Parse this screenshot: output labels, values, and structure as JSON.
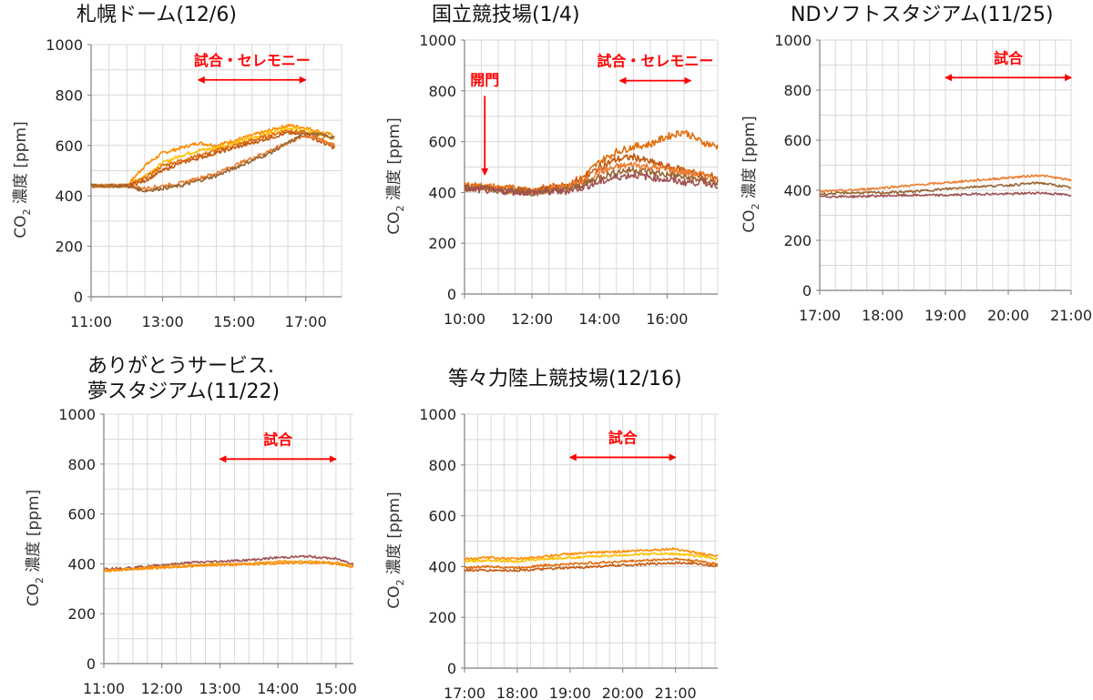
{
  "colors": {
    "grid": "#d9d9d9",
    "axis": "#7f7f7f",
    "annotation": "#ff0000",
    "series": [
      "#ff8c00",
      "#ffc000",
      "#e36c09",
      "#c55a11",
      "#ed7d31",
      "#996633",
      "#a05050",
      "#f4a020"
    ]
  },
  "chart_data": [
    {
      "type": "line",
      "title": "札幌ドーム(12/6)",
      "ylabel_main": "CO",
      "ylabel_sub": "2",
      "ylabel_rest": " 濃度 [ppm]",
      "ylim": [
        0,
        1000
      ],
      "yticks": [
        0,
        200,
        400,
        600,
        800,
        1000
      ],
      "xlim": [
        11,
        18
      ],
      "xticks": [
        11,
        13,
        15,
        17
      ],
      "xtick_labels": [
        "11:00",
        "13:00",
        "15:00",
        "17:00"
      ],
      "grid": true,
      "annotations": [
        {
          "text": "試合・セレモニー",
          "from": 14,
          "to": 17,
          "y": 860
        }
      ],
      "series": [
        {
          "x": [
            11,
            12,
            12.5,
            13,
            13.5,
            14,
            14.5,
            15,
            15.5,
            16,
            16.5,
            17,
            17.5,
            17.8
          ],
          "values": [
            440,
            440,
            520,
            570,
            590,
            610,
            600,
            620,
            640,
            660,
            680,
            670,
            650,
            640
          ]
        },
        {
          "x": [
            11,
            12,
            12.5,
            13,
            13.5,
            14,
            14.5,
            15,
            15.5,
            16,
            16.5,
            17,
            17.5,
            17.8
          ],
          "values": [
            440,
            440,
            480,
            530,
            560,
            580,
            590,
            610,
            630,
            650,
            670,
            660,
            640,
            620
          ]
        },
        {
          "x": [
            11,
            12,
            12.5,
            13,
            13.5,
            14,
            14.5,
            15,
            15.5,
            16,
            16.5,
            17,
            17.5,
            17.8
          ],
          "values": [
            440,
            440,
            470,
            520,
            540,
            560,
            580,
            600,
            620,
            640,
            660,
            650,
            620,
            600
          ]
        },
        {
          "x": [
            11,
            12,
            12.5,
            13,
            13.5,
            14,
            14.5,
            15,
            15.5,
            16,
            16.5,
            17,
            17.5,
            17.8
          ],
          "values": [
            440,
            440,
            460,
            500,
            530,
            550,
            570,
            590,
            610,
            630,
            650,
            640,
            610,
            590
          ]
        },
        {
          "x": [
            11,
            12,
            12.5,
            13,
            13.5,
            14,
            14.5,
            15,
            15.5,
            16,
            16.5,
            17,
            17.5,
            17.8
          ],
          "values": [
            440,
            440,
            430,
            440,
            450,
            470,
            490,
            520,
            550,
            580,
            610,
            640,
            620,
            600
          ]
        },
        {
          "x": [
            11,
            12,
            12.5,
            13,
            13.5,
            14,
            14.5,
            15,
            15.5,
            16,
            16.5,
            17,
            17.5,
            17.8
          ],
          "values": [
            440,
            440,
            420,
            430,
            440,
            460,
            480,
            510,
            540,
            570,
            610,
            650,
            640,
            630
          ]
        }
      ]
    },
    {
      "type": "line",
      "title": "国立競技場(1/4)",
      "ylabel_main": "CO",
      "ylabel_sub": "2",
      "ylabel_rest": " 濃度 [ppm]",
      "ylim": [
        0,
        1000
      ],
      "yticks": [
        0,
        200,
        400,
        600,
        800,
        1000
      ],
      "xlim": [
        10,
        17.5
      ],
      "xticks": [
        10,
        12,
        14,
        16
      ],
      "xtick_labels": [
        "10:00",
        "12:00",
        "14:00",
        "16:00"
      ],
      "grid": true,
      "annotations": [
        {
          "text": "試合・セレモニー",
          "from": 14.6,
          "to": 16.7,
          "y": 840
        },
        {
          "text": "開門",
          "arrow_down": true,
          "x": 10.6,
          "y_from": 780,
          "y_to": 470
        }
      ],
      "series": [
        {
          "x": [
            10,
            11,
            12,
            13,
            13.5,
            14,
            14.5,
            15,
            15.5,
            16,
            16.5,
            17,
            17.5
          ],
          "values": [
            430,
            420,
            410,
            430,
            460,
            520,
            560,
            580,
            590,
            620,
            640,
            600,
            580
          ]
        },
        {
          "x": [
            10,
            11,
            12,
            13,
            13.5,
            14,
            14.5,
            15,
            15.5,
            16,
            16.5,
            17,
            17.5
          ],
          "values": [
            420,
            410,
            405,
            420,
            450,
            500,
            530,
            540,
            520,
            500,
            490,
            470,
            460
          ]
        },
        {
          "x": [
            10,
            11,
            12,
            13,
            13.5,
            14,
            14.5,
            15,
            15.5,
            16,
            16.5,
            17,
            17.5
          ],
          "values": [
            425,
            415,
            400,
            420,
            440,
            480,
            500,
            510,
            500,
            490,
            480,
            470,
            450
          ]
        },
        {
          "x": [
            10,
            11,
            12,
            13,
            13.5,
            14,
            14.5,
            15,
            15.5,
            16,
            16.5,
            17,
            17.5
          ],
          "values": [
            420,
            410,
            400,
            410,
            430,
            460,
            480,
            490,
            480,
            470,
            460,
            450,
            440
          ]
        },
        {
          "x": [
            10,
            11,
            12,
            13,
            13.5,
            14,
            14.5,
            15,
            15.5,
            16,
            16.5,
            17,
            17.5
          ],
          "values": [
            415,
            405,
            400,
            405,
            420,
            440,
            460,
            470,
            460,
            450,
            440,
            440,
            430
          ]
        }
      ]
    },
    {
      "type": "line",
      "title": "NDソフトスタジアム(11/25)",
      "ylabel_main": "CO",
      "ylabel_sub": "2",
      "ylabel_rest": " 濃度 [ppm]",
      "ylim": [
        0,
        1000
      ],
      "yticks": [
        0,
        200,
        400,
        600,
        800,
        1000
      ],
      "xlim": [
        17,
        21
      ],
      "xticks": [
        17,
        18,
        19,
        20,
        21
      ],
      "xtick_labels": [
        "17:00",
        "18:00",
        "19:00",
        "20:00",
        "21:00"
      ],
      "grid": true,
      "annotations": [
        {
          "text": "試合",
          "from": 19,
          "to": 21,
          "y": 850
        }
      ],
      "series": [
        {
          "x": [
            17,
            17.5,
            18,
            18.5,
            19,
            19.5,
            20,
            20.5,
            21
          ],
          "values": [
            395,
            400,
            410,
            420,
            430,
            440,
            450,
            460,
            440
          ]
        },
        {
          "x": [
            17,
            17.5,
            18,
            18.5,
            19,
            19.5,
            20,
            20.5,
            21
          ],
          "values": [
            385,
            390,
            390,
            395,
            405,
            415,
            420,
            430,
            410
          ]
        },
        {
          "x": [
            17,
            17.5,
            18,
            18.5,
            19,
            19.5,
            20,
            20.5,
            21
          ],
          "values": [
            375,
            375,
            378,
            380,
            380,
            385,
            385,
            390,
            380
          ]
        }
      ]
    },
    {
      "type": "line",
      "title": "ありがとうサービス.",
      "title2": "夢スタジアム(11/22)",
      "ylabel_main": "CO",
      "ylabel_sub": "2",
      "ylabel_rest": " 濃度 [ppm]",
      "ylim": [
        0,
        1000
      ],
      "yticks": [
        0,
        200,
        400,
        600,
        800,
        1000
      ],
      "xlim": [
        11,
        15.3
      ],
      "xticks": [
        11,
        12,
        13,
        14,
        15
      ],
      "xtick_labels": [
        "11:00",
        "12:00",
        "13:00",
        "14:00",
        "15:00"
      ],
      "grid": true,
      "annotations": [
        {
          "text": "試合",
          "from": 13,
          "to": 15,
          "y": 820
        }
      ],
      "series": [
        {
          "x": [
            11,
            11.5,
            12,
            12.5,
            13,
            13.5,
            14,
            14.5,
            15,
            15.3
          ],
          "values": [
            380,
            385,
            395,
            405,
            410,
            415,
            425,
            430,
            420,
            400
          ]
        },
        {
          "x": [
            11,
            11.5,
            12,
            12.5,
            13,
            13.5,
            14,
            14.5,
            15,
            15.3
          ],
          "values": [
            375,
            380,
            390,
            395,
            400,
            400,
            410,
            410,
            405,
            390
          ]
        },
        {
          "x": [
            11,
            11.5,
            12,
            12.5,
            13,
            13.5,
            14,
            14.5,
            15,
            15.3
          ],
          "values": [
            372,
            378,
            385,
            390,
            395,
            398,
            402,
            405,
            400,
            388
          ]
        }
      ]
    },
    {
      "type": "line",
      "title": "等々力陸上競技場(12/16)",
      "ylabel_main": "CO",
      "ylabel_sub": "2",
      "ylabel_rest": " 濃度 [ppm]",
      "ylim": [
        0,
        1000
      ],
      "yticks": [
        0,
        200,
        400,
        600,
        800,
        1000
      ],
      "xlim": [
        17,
        21.8
      ],
      "xticks": [
        17,
        18,
        19,
        20,
        21
      ],
      "xtick_labels": [
        "17:00",
        "18:00",
        "19:00",
        "20:00",
        "21:00"
      ],
      "grid": true,
      "annotations": [
        {
          "text": "試合",
          "from": 19,
          "to": 21,
          "y": 830
        }
      ],
      "series": [
        {
          "x": [
            17,
            17.5,
            18,
            18.5,
            19,
            19.5,
            20,
            20.5,
            21,
            21.5,
            21.8
          ],
          "values": [
            430,
            435,
            430,
            440,
            450,
            455,
            460,
            465,
            470,
            450,
            440
          ]
        },
        {
          "x": [
            17,
            17.5,
            18,
            18.5,
            19,
            19.5,
            20,
            20.5,
            21,
            21.5,
            21.8
          ],
          "values": [
            420,
            425,
            420,
            430,
            435,
            440,
            445,
            450,
            450,
            440,
            430
          ]
        },
        {
          "x": [
            17,
            17.5,
            18,
            18.5,
            19,
            19.5,
            20,
            20.5,
            21,
            21.5,
            21.8
          ],
          "values": [
            395,
            400,
            395,
            405,
            410,
            415,
            420,
            425,
            430,
            420,
            410
          ]
        },
        {
          "x": [
            17,
            17.5,
            18,
            18.5,
            19,
            19.5,
            20,
            20.5,
            21,
            21.5,
            21.8
          ],
          "values": [
            385,
            385,
            385,
            390,
            395,
            400,
            405,
            410,
            415,
            410,
            400
          ]
        }
      ]
    }
  ]
}
